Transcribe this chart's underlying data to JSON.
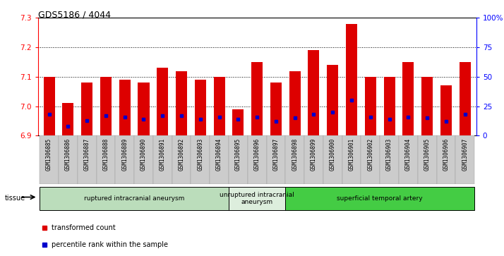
{
  "title": "GDS5186 / 4044",
  "samples": [
    "GSM1306885",
    "GSM1306886",
    "GSM1306887",
    "GSM1306888",
    "GSM1306889",
    "GSM1306890",
    "GSM1306891",
    "GSM1306892",
    "GSM1306893",
    "GSM1306894",
    "GSM1306895",
    "GSM1306896",
    "GSM1306897",
    "GSM1306898",
    "GSM1306899",
    "GSM1306900",
    "GSM1306901",
    "GSM1306902",
    "GSM1306903",
    "GSM1306904",
    "GSM1306905",
    "GSM1306906",
    "GSM1306907"
  ],
  "transformed_count": [
    7.1,
    7.01,
    7.08,
    7.1,
    7.09,
    7.08,
    7.13,
    7.12,
    7.09,
    7.1,
    6.99,
    7.15,
    7.08,
    7.12,
    7.19,
    7.14,
    7.28,
    7.1,
    7.1,
    7.15,
    7.1,
    7.07,
    7.15
  ],
  "percentile_rank": [
    18,
    8,
    13,
    17,
    16,
    14,
    17,
    17,
    14,
    16,
    14,
    16,
    12,
    15,
    18,
    20,
    30,
    16,
    14,
    16,
    15,
    12,
    18
  ],
  "ylim_left": [
    6.9,
    7.3
  ],
  "ylim_right": [
    0,
    100
  ],
  "yticks_left": [
    6.9,
    7.0,
    7.1,
    7.2,
    7.3
  ],
  "yticks_right": [
    0,
    25,
    50,
    75,
    100
  ],
  "ytick_labels_right": [
    "0",
    "25",
    "50",
    "75",
    "100%"
  ],
  "bar_color": "#dd0000",
  "dot_color": "#0000cc",
  "bar_bottom": 6.9,
  "groups": [
    {
      "label": "ruptured intracranial aneurysm",
      "start": 0,
      "end": 9,
      "color": "#bbddbb"
    },
    {
      "label": "unruptured intracranial\naneurysm",
      "start": 9,
      "end": 12,
      "color": "#ddeedd"
    },
    {
      "label": "superficial temporal artery",
      "start": 12,
      "end": 22,
      "color": "#44cc44"
    }
  ],
  "tissue_label": "tissue",
  "legend_items": [
    {
      "label": "transformed count",
      "color": "#dd0000",
      "marker": "s"
    },
    {
      "label": "percentile rank within the sample",
      "color": "#0000cc",
      "marker": "s"
    }
  ],
  "plot_bg_color": "#ffffff",
  "xlabel_bg_color": "#cccccc",
  "grid_color": "#000000"
}
